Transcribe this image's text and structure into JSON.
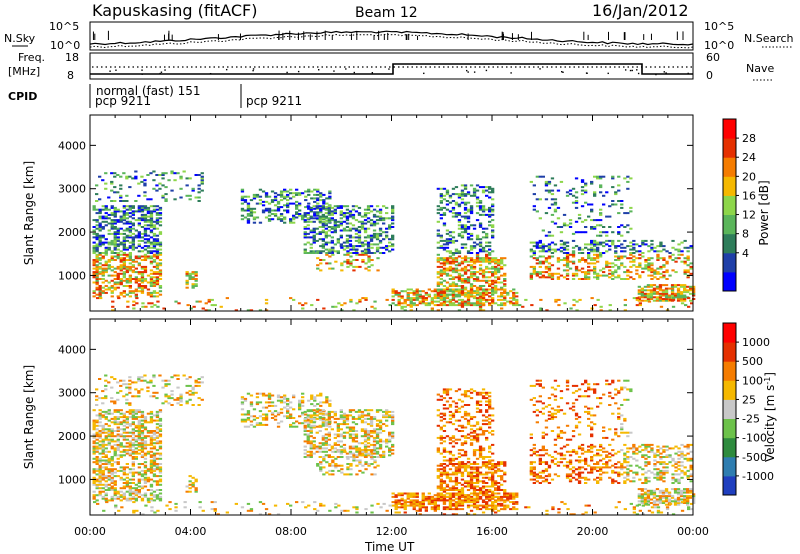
{
  "header": {
    "station": "Kapuskasing (fitACF)",
    "beam": "Beam 12",
    "date": "16/Jan/2012"
  },
  "labels": {
    "nsky": "N.Sky",
    "nsearch": "N.Search",
    "freq_line1": "Freq.",
    "freq_line2": "[MHz]",
    "nave": "Nave",
    "cpid": "CPID",
    "slant_range": "Slant Range [km]",
    "power_label": "Power [dB]",
    "velocity_label": "Velocity [m s",
    "velocity_sup": "-1",
    "velocity_close": "]",
    "time_ut": "Time UT"
  },
  "noise_panel": {
    "left_ticks": [
      "10^5",
      "10^0"
    ],
    "right_ticks": [
      "10^5",
      "10^0"
    ]
  },
  "freq_panel": {
    "left_ticks": [
      "18",
      "8"
    ],
    "right_ticks": [
      "60",
      "0"
    ]
  },
  "cpid_panel": {
    "mode_name": "normal (fast) 151",
    "segments": [
      {
        "label": "pcp 9211",
        "start_hour": 0
      },
      {
        "label": "pcp 9211",
        "start_hour": 6
      }
    ]
  },
  "chart_data": [
    {
      "type": "heatmap",
      "quantity": "Power",
      "ylabel": "Slant Range [km]",
      "xlabel": "Time UT",
      "xlim_hours": [
        0,
        24
      ],
      "ylim_km": [
        180,
        4700
      ],
      "yticks": [
        "1000",
        "2000",
        "3000",
        "4000"
      ],
      "colorbar": {
        "label": "Power [dB]",
        "ticks": [
          "28",
          "24",
          "20",
          "16",
          "12",
          "8",
          "4"
        ],
        "colors": [
          "#0000ff",
          "#1f3fa8",
          "#2e7d5a",
          "#5ab55a",
          "#8dd64a",
          "#f5b800",
          "#f57c00",
          "#e53000",
          "#ff0000"
        ]
      }
    },
    {
      "type": "heatmap",
      "quantity": "Velocity",
      "ylabel": "Slant Range [km]",
      "xlabel": "Time UT",
      "xlim_hours": [
        0,
        24
      ],
      "ylim_km": [
        180,
        4700
      ],
      "yticks": [
        "1000",
        "2000",
        "3000",
        "4000"
      ],
      "colorbar": {
        "label": "Velocity [m s-1]",
        "ticks": [
          "1000",
          "500",
          "100",
          "25",
          "-25",
          "-100",
          "-500",
          "-1000"
        ],
        "colors": [
          "#1f3fbf",
          "#2e7db0",
          "#2e8b3e",
          "#6cc24a",
          "#c8c8c8",
          "#f5b800",
          "#f57c00",
          "#e53000",
          "#ff0000"
        ]
      }
    }
  ],
  "time_axis": {
    "ticks": [
      "00:00",
      "04:00",
      "08:00",
      "12:00",
      "16:00",
      "20:00",
      "00:00"
    ]
  }
}
